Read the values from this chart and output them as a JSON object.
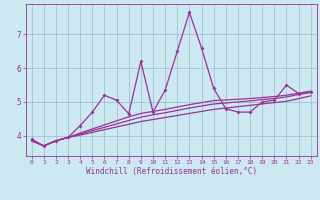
{
  "xlabel": "Windchill (Refroidissement éolien,°C)",
  "x_values": [
    0,
    1,
    2,
    3,
    4,
    5,
    6,
    7,
    8,
    9,
    10,
    11,
    12,
    13,
    14,
    15,
    16,
    17,
    18,
    19,
    20,
    21,
    22,
    23
  ],
  "main_line": [
    3.9,
    3.7,
    3.85,
    3.95,
    4.3,
    4.7,
    5.2,
    5.05,
    4.65,
    6.2,
    4.7,
    5.35,
    6.5,
    7.65,
    6.6,
    5.4,
    4.8,
    4.7,
    4.7,
    5.0,
    5.05,
    5.5,
    5.25,
    5.3
  ],
  "trend1": [
    3.85,
    3.7,
    3.85,
    3.95,
    4.02,
    4.1,
    4.18,
    4.26,
    4.34,
    4.42,
    4.48,
    4.54,
    4.6,
    4.66,
    4.72,
    4.78,
    4.82,
    4.86,
    4.9,
    4.94,
    4.98,
    5.02,
    5.1,
    5.18
  ],
  "trend2": [
    3.85,
    3.7,
    3.85,
    3.95,
    4.05,
    4.15,
    4.25,
    4.35,
    4.45,
    4.55,
    4.62,
    4.68,
    4.75,
    4.82,
    4.88,
    4.94,
    4.97,
    5.0,
    5.03,
    5.07,
    5.1,
    5.15,
    5.22,
    5.28
  ],
  "trend3": [
    3.85,
    3.7,
    3.85,
    3.95,
    4.08,
    4.2,
    4.32,
    4.44,
    4.56,
    4.66,
    4.72,
    4.78,
    4.85,
    4.92,
    4.98,
    5.04,
    5.06,
    5.08,
    5.1,
    5.13,
    5.16,
    5.2,
    5.26,
    5.32
  ],
  "line_color": "#993399",
  "bg_color": "#cce8f0",
  "grid_color": "#99bbcc",
  "ylim": [
    3.4,
    7.9
  ],
  "yticks": [
    4,
    5,
    6,
    7
  ],
  "xticks": [
    0,
    1,
    2,
    3,
    4,
    5,
    6,
    7,
    8,
    9,
    10,
    11,
    12,
    13,
    14,
    15,
    16,
    17,
    18,
    19,
    20,
    21,
    22,
    23
  ]
}
